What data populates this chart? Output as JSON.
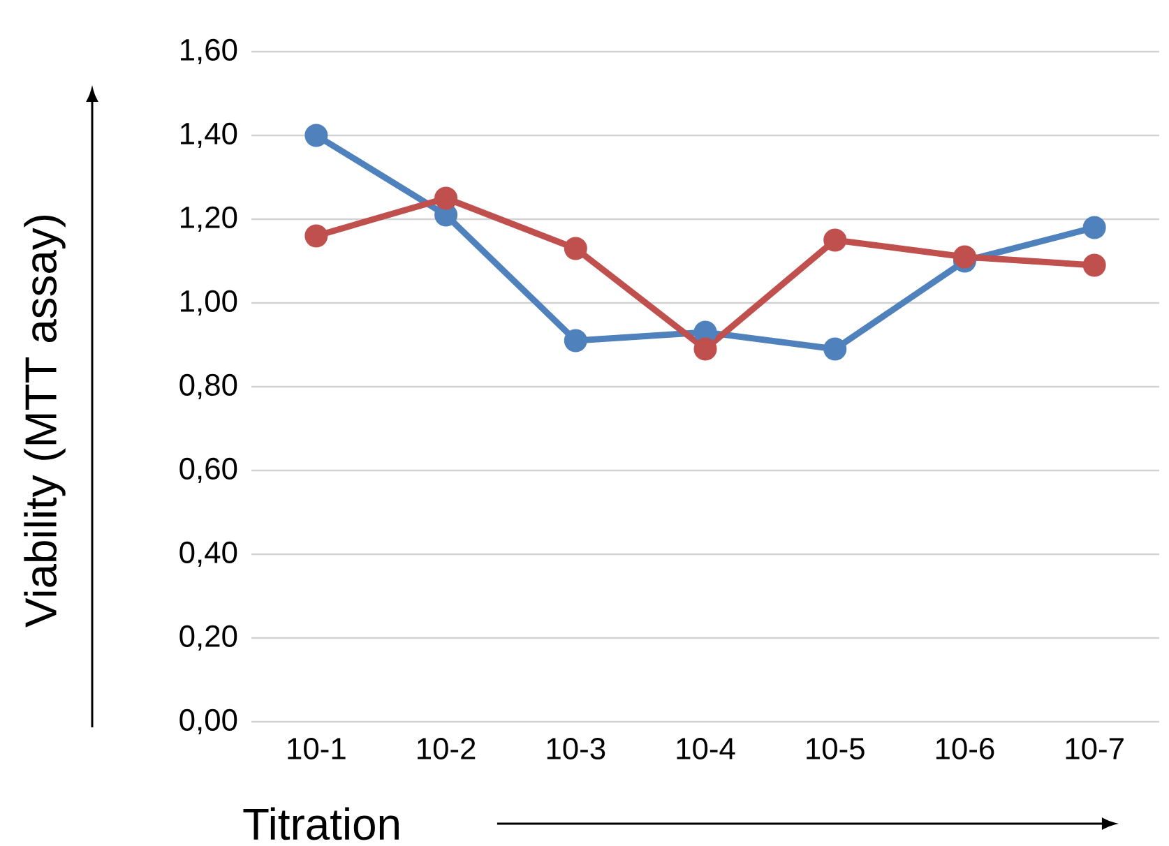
{
  "chart_data": {
    "type": "line",
    "xlabel": "Titration",
    "ylabel": "Viability (MTT assay)",
    "categories": [
      "10-1",
      "10-2",
      "10-3",
      "10-4",
      "10-5",
      "10-6",
      "10-7"
    ],
    "series": [
      {
        "color": "#4f81bd",
        "values": [
          1.4,
          1.21,
          0.91,
          0.93,
          0.89,
          1.1,
          1.18
        ]
      },
      {
        "color": "#c0504d",
        "values": [
          1.16,
          1.25,
          1.13,
          0.89,
          1.15,
          1.11,
          1.09
        ]
      }
    ],
    "ylim": [
      0,
      1.6
    ],
    "yticks": [
      {
        "value": 0,
        "label": "0,00"
      },
      {
        "value": 0.2,
        "label": "0,20"
      },
      {
        "value": 0.4,
        "label": "0,40"
      },
      {
        "value": 0.6,
        "label": "0,60"
      },
      {
        "value": 0.8,
        "label": "0,80"
      },
      {
        "value": 1.0,
        "label": "1,00"
      },
      {
        "value": 1.2,
        "label": "1,20"
      },
      {
        "value": 1.4,
        "label": "1,40"
      },
      {
        "value": 1.6,
        "label": "1,60"
      }
    ],
    "grid": "y",
    "marker": "circle",
    "line_style": "solid"
  }
}
